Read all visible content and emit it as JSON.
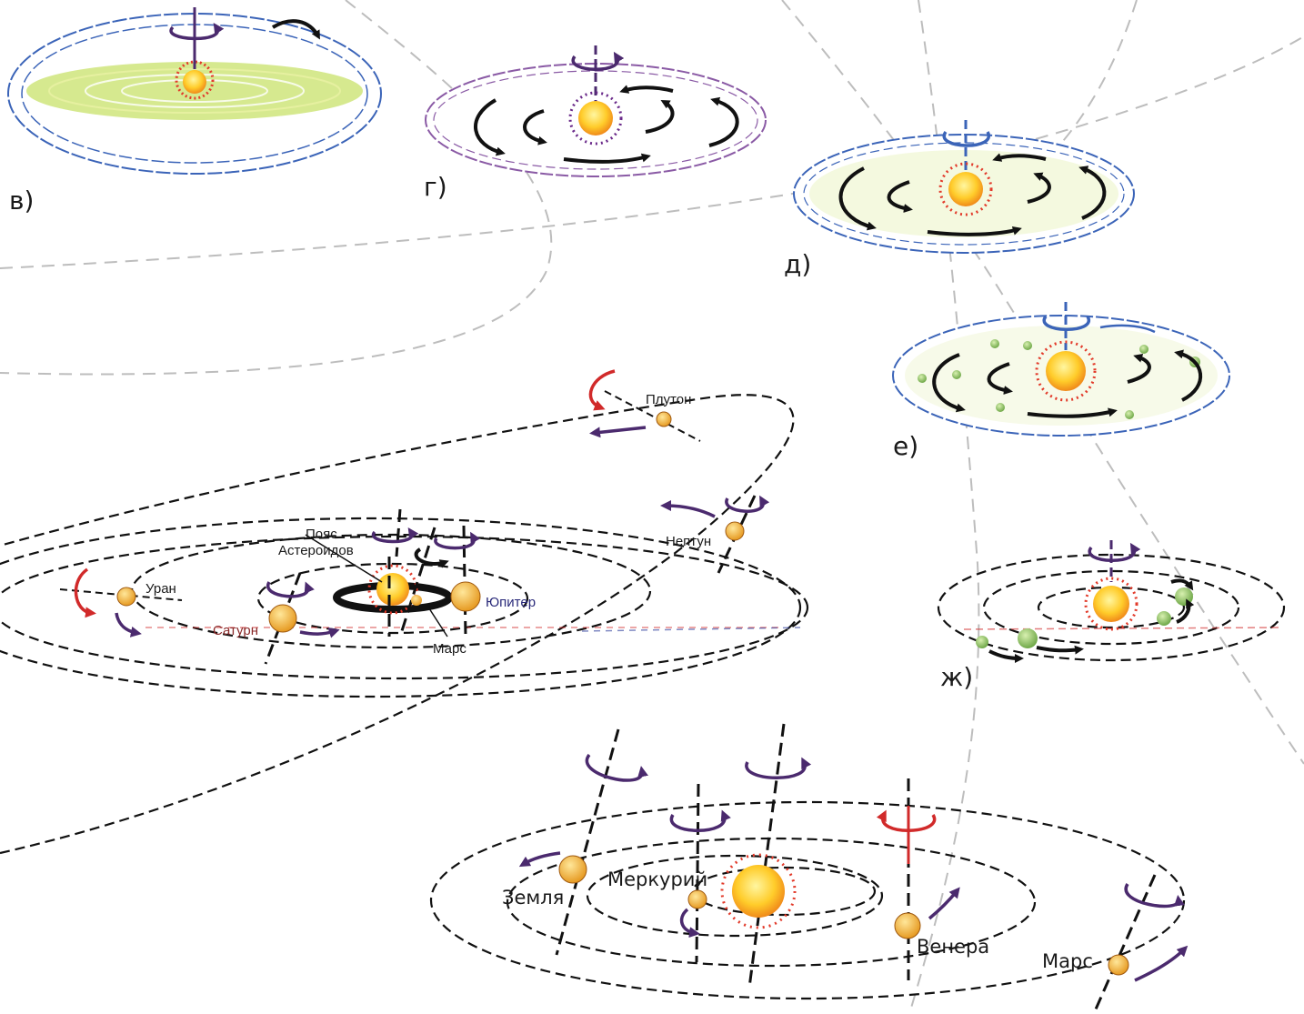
{
  "panels": [
    {
      "id": "v",
      "label": "в)"
    },
    {
      "id": "g",
      "label": "г)"
    },
    {
      "id": "d",
      "label": "д)"
    },
    {
      "id": "e",
      "label": "е)"
    },
    {
      "id": "zh",
      "label": "ж)"
    }
  ],
  "outer_system": {
    "pluto": "Плутон",
    "neptune": "Нептун",
    "uranus": "Уран",
    "saturn": "Сатурн",
    "jupiter": "Юпитер",
    "mars": "Марс",
    "asteroid_belt": "Пояс\nАстероидов"
  },
  "inner_system": {
    "earth": "Земля",
    "mercury": "Меркурий",
    "venus": "Венера",
    "mars": "Марс"
  },
  "colors": {
    "orbit": "#111111",
    "cloud_blue": "#3b64b8",
    "cloud_purple": "#8a5aa5",
    "sun_core": "#ffd23a",
    "sun_ray": "#e23a2a",
    "planet": "#f7b43a",
    "spin_purple": "#4b2a6e",
    "spin_red": "#d12a2a",
    "gas_green": "#c8e26a",
    "planetesimal": "#8fc36a"
  }
}
